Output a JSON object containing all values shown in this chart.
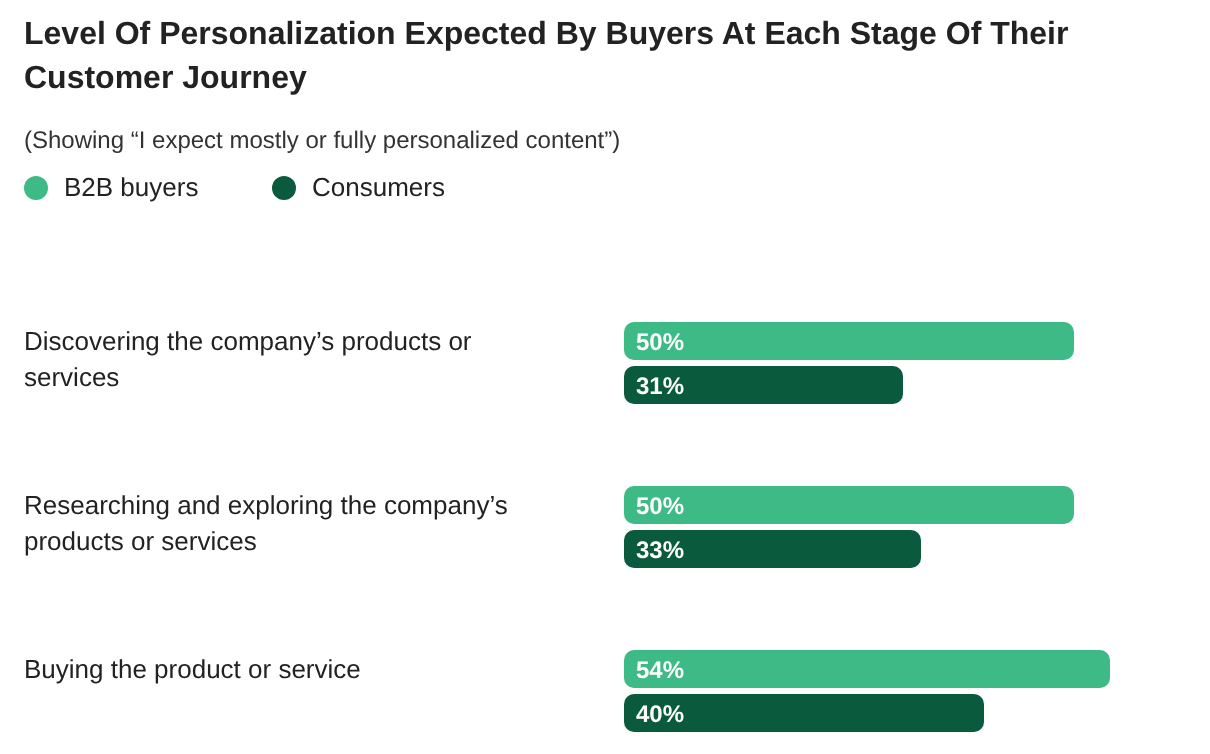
{
  "chart_data": {
    "type": "bar",
    "orientation": "horizontal",
    "title": "Level Of Personalization Expected By Buyers At Each Stage Of Their Customer Journey",
    "subtitle": "(Showing “I expect mostly or fully personalized content”)",
    "categories": [
      "Discovering the company’s products or services",
      "Researching and exploring the company’s products or services",
      "Buying the product or service"
    ],
    "series": [
      {
        "name": "B2B buyers",
        "color": "#3dba85",
        "values": [
          50,
          50,
          54
        ],
        "value_labels": [
          "50%",
          "50%",
          "54%"
        ]
      },
      {
        "name": "Consumers",
        "color": "#0a5b3d",
        "values": [
          31,
          33,
          40
        ],
        "value_labels": [
          "31%",
          "33%",
          "40%"
        ]
      }
    ],
    "legend": "top left"
  }
}
